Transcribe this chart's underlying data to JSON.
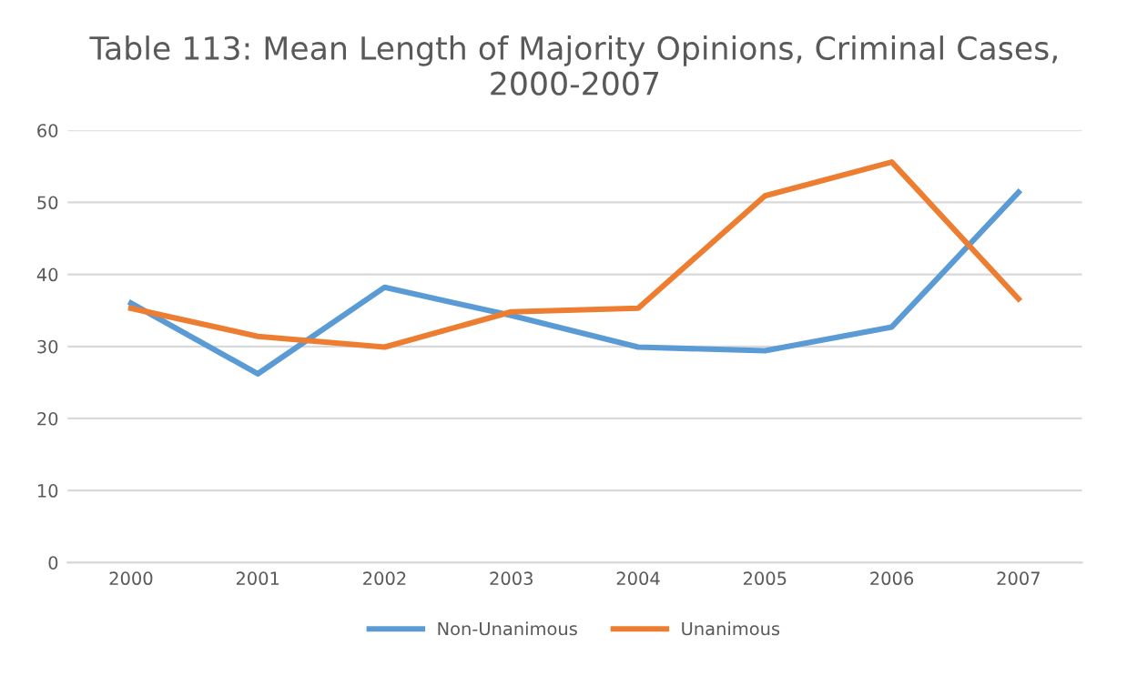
{
  "chart_data": {
    "type": "line",
    "title": "Table 113: Mean Length of Majority Opinions, Criminal Cases,\n2000-2007",
    "categories": [
      "2000",
      "2001",
      "2002",
      "2003",
      "2004",
      "2005",
      "2006",
      "2007"
    ],
    "series": [
      {
        "name": "Non-Unanimous",
        "color": "#5b9bd5",
        "values": [
          36,
          26.2,
          38.2,
          34.3,
          29.9,
          29.4,
          32.7,
          51.4
        ]
      },
      {
        "name": "Unanimous",
        "color": "#ed7d31",
        "values": [
          35.3,
          31.4,
          29.9,
          34.8,
          35.3,
          50.9,
          55.6,
          36.6
        ]
      }
    ],
    "ylim": [
      0,
      60
    ],
    "yticks": [
      0,
      10,
      20,
      30,
      40,
      50,
      60
    ],
    "grid": "y",
    "legend": "bottom",
    "marker": "none",
    "line_style": "solid"
  }
}
